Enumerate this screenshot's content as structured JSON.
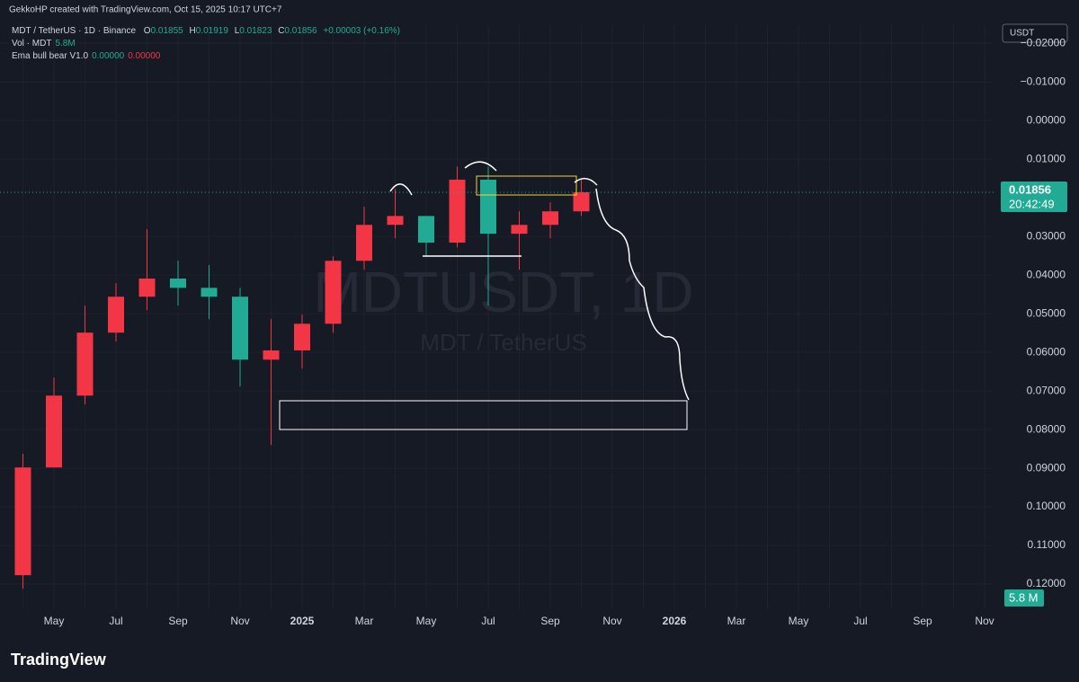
{
  "header": {
    "credit": "GekkoHP created with TradingView.com, Oct 15, 2025 10:17 UTC+7"
  },
  "legend": {
    "symbol": "MDT / TetherUS · 1D · Binance",
    "o_label": "O",
    "o": "0.01855",
    "h_label": "H",
    "h": "0.01919",
    "l_label": "L",
    "l": "0.01823",
    "c_label": "C",
    "c": "0.01856",
    "change": "+0.00003 (+0.16%)",
    "volume_name": "Vol · MDT",
    "volume": "5.8M",
    "indicator": "Ema bull bear V1.0",
    "ind_a": "0.00000",
    "ind_b": "0.00000"
  },
  "watermark": {
    "symbol": "MDTUSDT, 1D",
    "name": "MDT / TetherUS"
  },
  "currency_button": "USDT",
  "footer": {
    "logo": "TradingView"
  },
  "chart_data": {
    "type": "candlestick",
    "inverted": true,
    "grid": true,
    "up_color": "#22ab94",
    "down_color": "#f23645",
    "categories": [
      null,
      "May",
      null,
      "Jul",
      null,
      "Sep",
      null,
      "Nov",
      null,
      "2025",
      null,
      "Mar",
      null,
      "May",
      null,
      "Jul",
      null,
      "Sep",
      null,
      "Nov",
      null,
      "2026",
      null,
      "Mar",
      null,
      "May",
      null,
      "Jul",
      null,
      "Sep",
      null,
      "Nov"
    ],
    "open": [
      0.1177,
      0.0898,
      0.0712,
      0.0549,
      0.0456,
      0.0409,
      0.0433,
      0.0456,
      0.0619,
      0.0595,
      0.0526,
      0.0363,
      0.027,
      0.0247,
      0.0316,
      0.0153,
      0.0293,
      0.027,
      0.0235,
      null,
      null,
      null,
      null,
      null,
      null,
      null,
      null,
      null,
      null,
      null,
      null,
      null
    ],
    "high": [
      0.1212,
      0.0898,
      0.0735,
      0.0572,
      0.0491,
      0.0479,
      0.0514,
      0.0688,
      0.084,
      0.0642,
      0.0549,
      0.0386,
      0.0305,
      0.0351,
      0.0328,
      0.0479,
      0.0386,
      0.0305,
      0.0247,
      null,
      null,
      null,
      null,
      null,
      null,
      null,
      null,
      null,
      null,
      null,
      null,
      null
    ],
    "low": [
      0.0863,
      0.0665,
      0.0479,
      0.0421,
      0.0281,
      0.0363,
      0.0374,
      0.0433,
      0.0514,
      0.0502,
      0.0351,
      0.0223,
      0.0177,
      0.0247,
      0.0119,
      0.0119,
      0.0235,
      0.0212,
      0.0153,
      null,
      null,
      null,
      null,
      null,
      null,
      null,
      null,
      null,
      null,
      null,
      null,
      null
    ],
    "close": [
      0.0898,
      0.0712,
      0.0549,
      0.0456,
      0.0409,
      0.0433,
      0.0456,
      0.0619,
      0.0595,
      0.0526,
      0.0363,
      0.027,
      0.0247,
      0.0316,
      0.0153,
      0.0293,
      0.027,
      0.0235,
      0.01856,
      null,
      null,
      null,
      null,
      null,
      null,
      null,
      null,
      null,
      null,
      null,
      null,
      null
    ],
    "ylim": [
      -0.0247,
      0.1265
    ],
    "yticks": [
      {
        "value": -0.02,
        "label": "−0.02000"
      },
      {
        "value": -0.01,
        "label": "−0.01000"
      },
      {
        "value": 0,
        "label": "0.00000"
      },
      {
        "value": 0.01,
        "label": "0.01000"
      },
      {
        "value": 0.03,
        "label": "0.03000"
      },
      {
        "value": 0.04,
        "label": "0.04000"
      },
      {
        "value": 0.05,
        "label": "0.05000"
      },
      {
        "value": 0.06,
        "label": "0.06000"
      },
      {
        "value": 0.07,
        "label": "0.07000"
      },
      {
        "value": 0.08,
        "label": "0.08000"
      },
      {
        "value": 0.09,
        "label": "0.09000"
      },
      {
        "value": 0.1,
        "label": "0.10000"
      },
      {
        "value": 0.11,
        "label": "0.11000"
      },
      {
        "value": 0.12,
        "label": "0.12000"
      }
    ],
    "last_price": {
      "value": 0.01856,
      "label": "0.01856"
    },
    "countdown": "20:42:49",
    "volume_label": "5.8 M"
  }
}
